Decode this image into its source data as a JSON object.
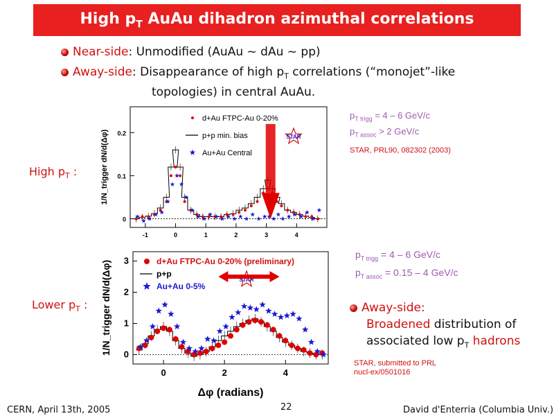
{
  "title": {
    "pre": "High p",
    "sub": "T",
    "post": " AuAu dihadron azimuthal correlations"
  },
  "bullets": [
    {
      "key": "Near-side",
      "sep": ":  ",
      "text": "Unmodified (AuAu ~ dAu ~ pp)"
    },
    {
      "key": "Away-side",
      "sep": ": ",
      "text1": "Disappearance of high p",
      "sub": "T",
      "text2": " correlations (“monojet”-like",
      "text3": "topologies) in central AuAu."
    }
  ],
  "high_label": {
    "pre": "High p",
    "sub": "T",
    "post": " :"
  },
  "lower_label": {
    "pre": "Lower p",
    "sub": "T",
    "post": " :"
  },
  "top_params": {
    "l1a": "p",
    "l1s": "T trigg",
    "l1b": " = 4 – 6 GeV/c",
    "l2a": "p",
    "l2s": "T assoc",
    "l2b": " > 2 GeV/c"
  },
  "top_ref": "STAR, PRL90, 082302 (2003)",
  "bottom_params": {
    "l1a": "p",
    "l1s": "T trigg",
    "l1b": " = 4 – 6 GeV/c",
    "l2a": "p",
    "l2s": "T assoc",
    "l2b": " = 0.15 – 4 GeV/c"
  },
  "away": {
    "head": "Away-side:",
    "w1": "Broadened",
    "w2": " distribution of",
    "w3": "associated low p",
    "sub": "T",
    "w4": " hadrons"
  },
  "bottom_ref": {
    "l1": "STAR, submitted to PRL",
    "l2": "nucl-ex/0501016"
  },
  "footer": {
    "left": "CERN, April 13th, 2005",
    "page": "22",
    "right": "David d'Enterria (Columbia Univ.)"
  },
  "colors": {
    "title_bg": "#e8201f",
    "accent_red": "#d01010",
    "param_purple": "#a05ab0",
    "star_blue": "#1a1ad0"
  },
  "chart_data": [
    {
      "type": "scatter",
      "xlabel": "",
      "ylabel": "1/N_trigger dN/d(Δφ)",
      "xlim": [
        -1.5,
        5.0
      ],
      "ylim": [
        -0.02,
        0.26
      ],
      "xticks": [
        "-1",
        "0",
        "1",
        "2",
        "3",
        "4"
      ],
      "yticks": [
        "0",
        "0.1",
        "0.2"
      ],
      "legend": [
        "d+Au FTPC-Au 0-20%",
        "p+p min. bias",
        "Au+Au Central"
      ],
      "logo": "STAR",
      "series": [
        {
          "name": "d+Au FTPC-Au 0-20%",
          "marker": "dot",
          "x": [
            -1.3,
            -1.1,
            -0.9,
            -0.7,
            -0.5,
            -0.3,
            -0.15,
            0,
            0.15,
            0.3,
            0.5,
            0.7,
            0.9,
            1.1,
            1.3,
            1.5,
            1.7,
            1.9,
            2.1,
            2.3,
            2.5,
            2.7,
            2.9,
            3.05,
            3.2,
            3.35,
            3.5,
            3.7,
            3.9,
            4.1,
            4.3,
            4.5,
            4.7
          ],
          "y": [
            0,
            0.005,
            0.005,
            0.01,
            0.02,
            0.04,
            0.1,
            0.12,
            0.1,
            0.04,
            0.02,
            0.01,
            0.005,
            0.005,
            0.005,
            0.005,
            0.01,
            0.01,
            0.015,
            0.02,
            0.03,
            0.04,
            0.06,
            0.07,
            0.06,
            0.04,
            0.03,
            0.02,
            0.015,
            0.01,
            0.005,
            0.005,
            0
          ]
        },
        {
          "name": "p+p min. bias",
          "marker": "histogram",
          "x": [
            -1.3,
            -1.1,
            -0.9,
            -0.7,
            -0.5,
            -0.3,
            -0.15,
            0,
            0.15,
            0.3,
            0.5,
            0.7,
            0.9,
            1.1,
            1.3,
            1.5,
            1.7,
            1.9,
            2.1,
            2.3,
            2.5,
            2.7,
            2.9,
            3.05,
            3.2,
            3.35,
            3.5,
            3.7,
            3.9,
            4.1,
            4.3,
            4.5,
            4.7
          ],
          "y": [
            0,
            0.003,
            0.006,
            0.012,
            0.025,
            0.05,
            0.12,
            0.16,
            0.12,
            0.05,
            0.02,
            0.01,
            0.005,
            0.005,
            0.005,
            0.005,
            0.01,
            0.012,
            0.02,
            0.025,
            0.035,
            0.05,
            0.07,
            0.09,
            0.07,
            0.05,
            0.035,
            0.02,
            0.015,
            0.01,
            0.006,
            0.003,
            0
          ]
        },
        {
          "name": "Au+Au Central",
          "marker": "star",
          "x": [
            -1.3,
            -1.1,
            -0.9,
            -0.7,
            -0.5,
            -0.3,
            -0.15,
            0,
            0.15,
            0.3,
            0.5,
            0.7,
            0.9,
            1.1,
            1.3,
            1.5,
            1.7,
            1.9,
            2.1,
            2.3,
            2.5,
            2.7,
            2.9,
            3.05,
            3.2,
            3.35,
            3.5,
            3.7,
            3.9,
            4.1,
            4.3,
            4.5,
            4.7
          ],
          "y": [
            0.005,
            -0.005,
            0.0,
            0.01,
            0.015,
            0.04,
            0.08,
            0.1,
            0.08,
            0.05,
            0.02,
            0.005,
            0.0,
            0.01,
            0.005,
            0.0,
            0.005,
            0.0,
            0.005,
            0.0,
            0.01,
            0.0,
            0.005,
            0.005,
            0.0,
            0.01,
            0.0,
            0.005,
            0.01,
            0.005,
            0.015,
            0.0,
            0.02
          ]
        }
      ],
      "annotation": "red downward arrow at Δφ ≈ π (away-side suppression)"
    },
    {
      "type": "scatter",
      "xlabel": "Δφ (radians)",
      "ylabel": "1/N_trigger dN/d(Δφ)",
      "xlim": [
        -1.0,
        5.4
      ],
      "ylim": [
        -0.3,
        3.3
      ],
      "xticks": [
        "0",
        "2",
        "4"
      ],
      "yticks": [
        "0",
        "1",
        "2",
        "3"
      ],
      "legend": [
        "d+Au FTPC-Au 0-20% (preliminary)",
        "p+p",
        "Au+Au 0-5%"
      ],
      "logo": "STAR",
      "series": [
        {
          "name": "d+Au FTPC-Au 0-20% (preliminary)",
          "marker": "dot",
          "x": [
            -0.8,
            -0.6,
            -0.4,
            -0.2,
            0.0,
            0.2,
            0.4,
            0.6,
            0.8,
            1.0,
            1.2,
            1.4,
            1.6,
            1.8,
            2.0,
            2.2,
            2.4,
            2.6,
            2.8,
            3.0,
            3.2,
            3.4,
            3.6,
            3.8,
            4.0,
            4.2,
            4.4,
            4.6,
            4.8,
            5.0,
            5.2
          ],
          "y": [
            0.2,
            0.3,
            0.55,
            0.75,
            0.85,
            0.8,
            0.5,
            0.25,
            0.1,
            0.0,
            0.05,
            0.1,
            0.2,
            0.3,
            0.4,
            0.6,
            0.8,
            0.95,
            1.05,
            1.1,
            1.05,
            0.95,
            0.8,
            0.6,
            0.45,
            0.3,
            0.2,
            0.15,
            0.05,
            0.0,
            0.05
          ]
        },
        {
          "name": "p+p",
          "marker": "histogram",
          "x": [
            -0.8,
            -0.6,
            -0.4,
            -0.2,
            0.0,
            0.2,
            0.4,
            0.6,
            0.8,
            1.0,
            1.2,
            1.4,
            1.6,
            1.8,
            2.0,
            2.2,
            2.4,
            2.6,
            2.8,
            3.0,
            3.2,
            3.4,
            3.6,
            3.8,
            4.0,
            4.2,
            4.4,
            4.6,
            4.8,
            5.0,
            5.2
          ],
          "y": [
            0.15,
            0.35,
            0.6,
            0.8,
            0.9,
            0.75,
            0.45,
            0.2,
            0.05,
            -0.05,
            0.0,
            0.1,
            0.25,
            0.45,
            0.6,
            0.75,
            0.9,
            1.0,
            1.1,
            1.15,
            1.05,
            0.9,
            0.75,
            0.55,
            0.4,
            0.3,
            0.2,
            0.1,
            0.05,
            0.0,
            0.0
          ]
        },
        {
          "name": "Au+Au 0-5%",
          "marker": "star",
          "x": [
            -0.8,
            -0.6,
            -0.4,
            -0.2,
            0.0,
            0.2,
            0.4,
            0.6,
            0.8,
            1.0,
            1.2,
            1.4,
            1.6,
            1.8,
            2.0,
            2.2,
            2.4,
            2.6,
            2.8,
            3.0,
            3.2,
            3.4,
            3.6,
            3.8,
            4.0,
            4.2,
            4.4,
            4.6,
            4.8,
            5.0,
            5.2
          ],
          "y": [
            0.25,
            0.45,
            0.9,
            1.4,
            1.6,
            1.3,
            0.9,
            0.4,
            0.2,
            0.1,
            0.2,
            0.5,
            0.45,
            0.75,
            0.9,
            1.2,
            1.35,
            1.55,
            1.5,
            1.45,
            1.6,
            1.4,
            1.3,
            1.2,
            1.25,
            1.3,
            1.15,
            0.8,
            0.4,
            0.1,
            0.0
          ]
        }
      ],
      "annotation": "red double-headed arrow across away-side peak (broadening)"
    }
  ]
}
